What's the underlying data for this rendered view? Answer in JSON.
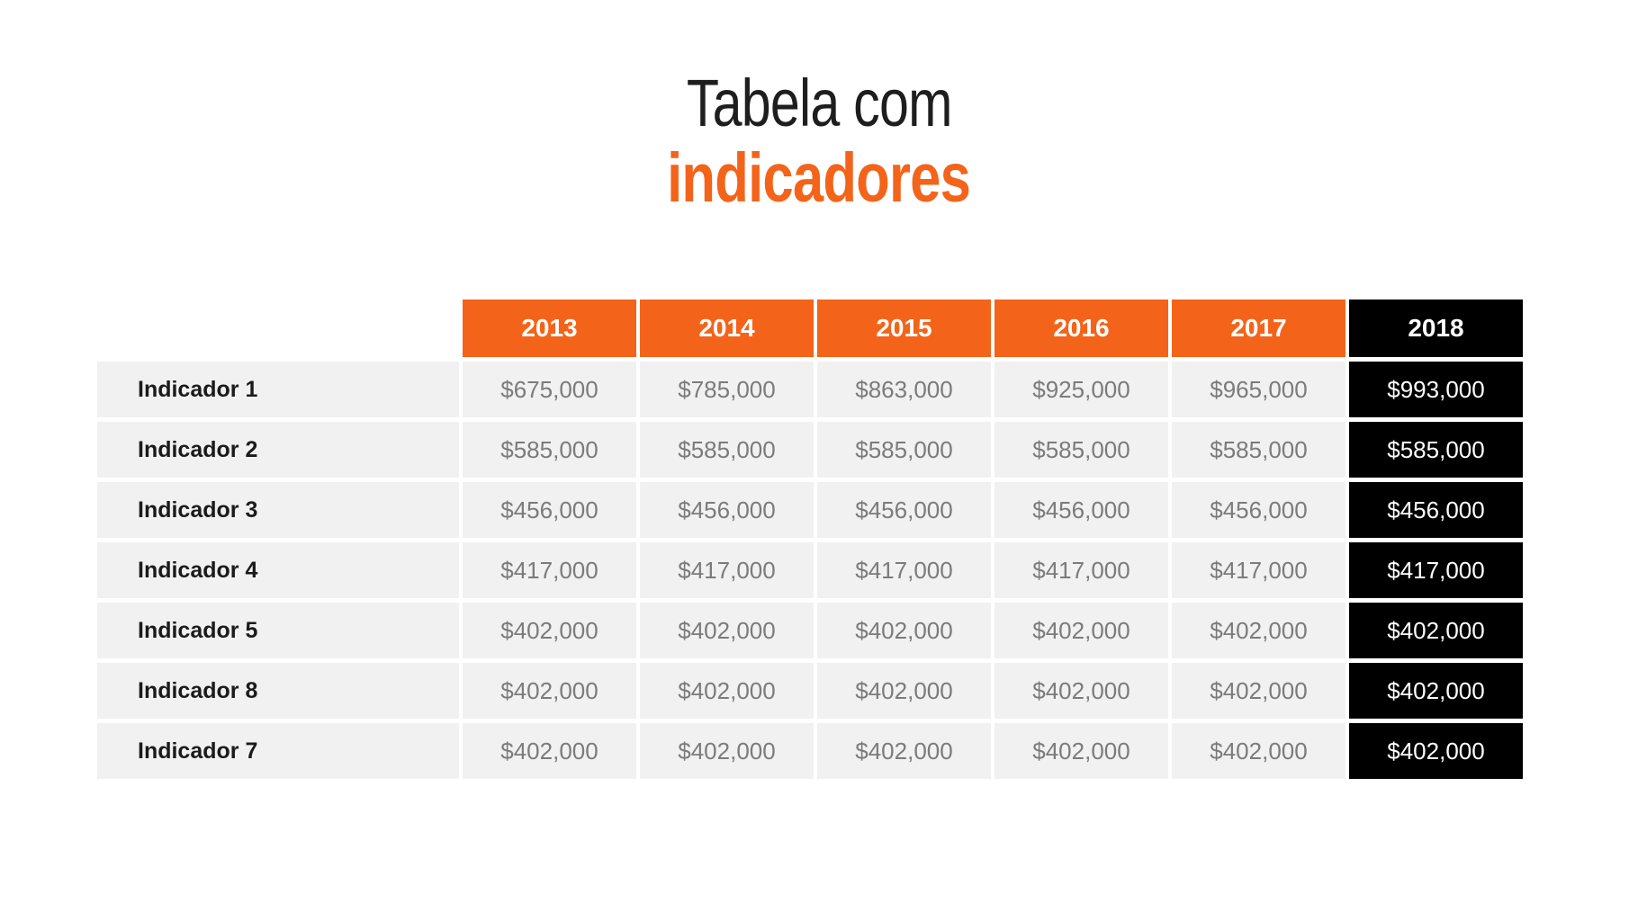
{
  "slide": {
    "title_line1": "Tabela com",
    "title_line2": "indicadores"
  },
  "colors": {
    "accent_orange": "#F3641A",
    "highlight_black": "#000000",
    "row_background": "#F1F1F1",
    "value_text": "#7B7B7B",
    "label_text": "#1B1B1B",
    "header_text": "#FFFFFF",
    "page_background": "#FFFFFF",
    "title_dark": "#1E1E1E"
  },
  "chart_data": {
    "type": "table",
    "title": "Tabela com indicadores",
    "columns": [
      "2013",
      "2014",
      "2015",
      "2016",
      "2017",
      "2018"
    ],
    "highlight_column": "2018",
    "rows": [
      {
        "label": "Indicador 1",
        "values": [
          "$675,000",
          "$785,000",
          "$863,000",
          "$925,000",
          "$965,000",
          "$993,000"
        ]
      },
      {
        "label": "Indicador 2",
        "values": [
          "$585,000",
          "$585,000",
          "$585,000",
          "$585,000",
          "$585,000",
          "$585,000"
        ]
      },
      {
        "label": "Indicador 3",
        "values": [
          "$456,000",
          "$456,000",
          "$456,000",
          "$456,000",
          "$456,000",
          "$456,000"
        ]
      },
      {
        "label": "Indicador 4",
        "values": [
          "$417,000",
          "$417,000",
          "$417,000",
          "$417,000",
          "$417,000",
          "$417,000"
        ]
      },
      {
        "label": "Indicador 5",
        "values": [
          "$402,000",
          "$402,000",
          "$402,000",
          "$402,000",
          "$402,000",
          "$402,000"
        ]
      },
      {
        "label": "Indicador 8",
        "values": [
          "$402,000",
          "$402,000",
          "$402,000",
          "$402,000",
          "$402,000",
          "$402,000"
        ]
      },
      {
        "label": "Indicador 7",
        "values": [
          "$402,000",
          "$402,000",
          "$402,000",
          "$402,000",
          "$402,000",
          "$402,000"
        ]
      }
    ]
  }
}
